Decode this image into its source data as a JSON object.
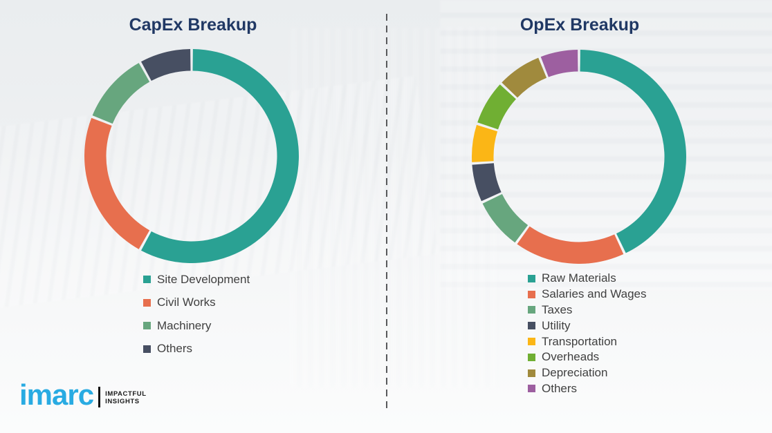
{
  "page": {
    "background": "#ECEEF0",
    "divider_color": "#58595B",
    "title_color": "#203864",
    "legend_text_color": "#404040"
  },
  "logo": {
    "brand": "imarc",
    "tagline_line1": "IMPACTFUL",
    "tagline_line2": "INSIGHTS",
    "brand_color": "#29ABE2"
  },
  "chart_data": [
    {
      "type": "pie",
      "subtype": "donut",
      "title": "CapEx Breakup",
      "legend_position": "bottom",
      "categories": [
        "Site Development",
        "Civil Works",
        "Machinery",
        "Others"
      ],
      "values": [
        58,
        23,
        11,
        8
      ],
      "colors": [
        "#2AA193",
        "#E76F4E",
        "#67A67E",
        "#474F62"
      ]
    },
    {
      "type": "pie",
      "subtype": "donut",
      "title": "OpEx Breakup",
      "legend_position": "bottom",
      "categories": [
        "Raw Materials",
        "Salaries and Wages",
        "Taxes",
        "Utility",
        "Transportation",
        "Overheads",
        "Depreciation",
        "Others"
      ],
      "values": [
        43,
        17,
        8,
        6,
        6,
        7,
        7,
        6
      ],
      "colors": [
        "#2AA193",
        "#E76F4E",
        "#67A67E",
        "#474F62",
        "#FBB616",
        "#70AF33",
        "#A08A3D",
        "#9D5FA0"
      ]
    }
  ]
}
